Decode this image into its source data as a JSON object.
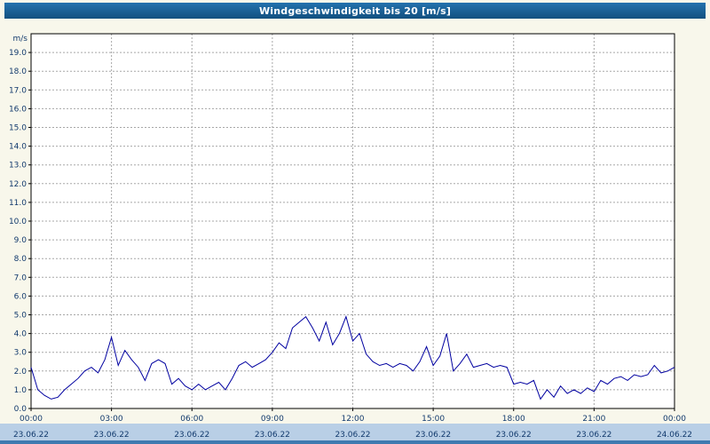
{
  "window": {
    "title": "Windgeschwindigkeit bis 20 [m/s]"
  },
  "colors": {
    "titlebar": "#12507f",
    "line": "#0000a0",
    "grid": "#a8a8a8",
    "axis_text": "#123a6d",
    "footer_band": "#b9cfe6",
    "footer_edge": "#3f7ab0",
    "background": "#f8f7eb",
    "plot_background": "#ffffff"
  },
  "chart_data": {
    "type": "line",
    "title": "Windgeschwindigkeit bis 20 [m/s]",
    "ylabel": "m/s",
    "xlabel": "",
    "ylim": [
      0,
      20
    ],
    "y_tick_labels": [
      "0.0",
      "1.0",
      "2.0",
      "3.0",
      "4.0",
      "5.0",
      "6.0",
      "7.0",
      "8.0",
      "9.0",
      "10.0",
      "11.0",
      "12.0",
      "13.0",
      "14.0",
      "15.0",
      "16.0",
      "17.0",
      "18.0",
      "19.0"
    ],
    "x_range_hours": [
      0,
      24
    ],
    "x_tick_hours": [
      0,
      3,
      6,
      9,
      12,
      15,
      18,
      21,
      24
    ],
    "x_tick_labels": [
      "00:00",
      "03:00",
      "06:00",
      "09:00",
      "12:00",
      "15:00",
      "18:00",
      "21:00",
      "00:00"
    ],
    "x_date_labels": [
      "23.06.22",
      "23.06.22",
      "23.06.22",
      "23.06.22",
      "23.06.22",
      "23.06.22",
      "23.06.22",
      "23.06.22",
      "24.06.22"
    ],
    "grid": "dashed",
    "legend": "none",
    "sample_interval_hours": 0.25,
    "series": [
      {
        "name": "Windgeschwindigkeit [m/s]",
        "color": "#0000a0",
        "values": [
          2.2,
          1.0,
          0.7,
          0.5,
          0.6,
          1.0,
          1.3,
          1.6,
          2.0,
          2.2,
          1.9,
          2.6,
          3.8,
          2.3,
          3.1,
          2.6,
          2.2,
          1.5,
          2.4,
          2.6,
          2.4,
          1.3,
          1.6,
          1.2,
          1.0,
          1.3,
          1.0,
          1.2,
          1.4,
          1.0,
          1.6,
          2.3,
          2.5,
          2.2,
          2.4,
          2.6,
          3.0,
          3.5,
          3.2,
          4.3,
          4.6,
          4.9,
          4.3,
          3.6,
          4.6,
          3.4,
          4.0,
          4.9,
          3.6,
          4.0,
          2.9,
          2.5,
          2.3,
          2.4,
          2.2,
          2.4,
          2.3,
          2.0,
          2.5,
          3.3,
          2.3,
          2.8,
          4.0,
          2.0,
          2.4,
          2.9,
          2.2,
          2.3,
          2.4,
          2.2,
          2.3,
          2.2,
          1.3,
          1.4,
          1.3,
          1.5,
          0.5,
          1.0,
          0.6,
          1.2,
          0.8,
          1.0,
          0.8,
          1.1,
          0.9,
          1.5,
          1.3,
          1.6,
          1.7,
          1.5,
          1.8,
          1.7,
          1.8,
          2.3,
          1.9,
          2.0,
          2.2
        ]
      }
    ]
  }
}
